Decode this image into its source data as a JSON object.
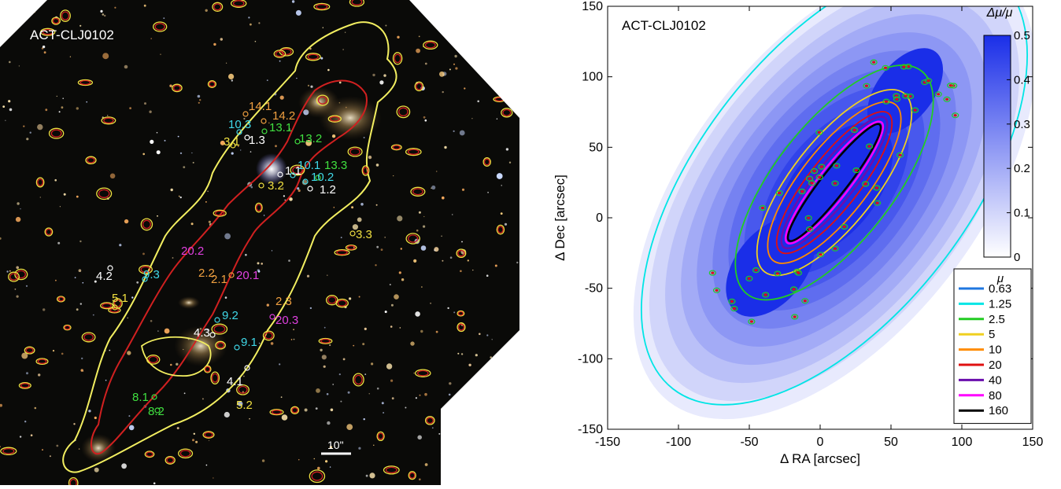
{
  "left_image": {
    "title": "ACT-CLJ0102",
    "scale_label": "10\"",
    "image_labels": [
      {
        "text": "14.1",
        "color": "#f0a040"
      },
      {
        "text": "14.2",
        "color": "#f0a040"
      },
      {
        "text": "10.3",
        "color": "#40d8e8"
      },
      {
        "text": "13.1",
        "color": "#40e040"
      },
      {
        "text": "13.2",
        "color": "#40e040"
      },
      {
        "text": "3.1",
        "color": "#f0e040"
      },
      {
        "text": "1.3",
        "color": "#ffffff"
      },
      {
        "text": "1.1",
        "color": "#ffffff"
      },
      {
        "text": "10.1",
        "color": "#40d8e8"
      },
      {
        "text": "13.3",
        "color": "#40e040"
      },
      {
        "text": "10.2",
        "color": "#40d8e8"
      },
      {
        "text": "1.2",
        "color": "#ffffff"
      },
      {
        "text": "3.2",
        "color": "#f0e040"
      },
      {
        "text": "3.3",
        "color": "#f0e040"
      },
      {
        "text": "20.2",
        "color": "#e040e0"
      },
      {
        "text": "4.2",
        "color": "#ffffff"
      },
      {
        "text": "9.3",
        "color": "#40d8e8"
      },
      {
        "text": "2.2",
        "color": "#f0a040"
      },
      {
        "text": "2.1",
        "color": "#f0a040"
      },
      {
        "text": "20.1",
        "color": "#e040e0"
      },
      {
        "text": "5.1",
        "color": "#f0e040"
      },
      {
        "text": "2.3",
        "color": "#f0a040"
      },
      {
        "text": "9.2",
        "color": "#40d8e8"
      },
      {
        "text": "20.3",
        "color": "#e040e0"
      },
      {
        "text": "4.3",
        "color": "#ffffff"
      },
      {
        "text": "9.1",
        "color": "#40d8e8"
      },
      {
        "text": "4.1",
        "color": "#ffffff"
      },
      {
        "text": "8.1",
        "color": "#40e040"
      },
      {
        "text": "8.2",
        "color": "#40e040"
      },
      {
        "text": "5.2",
        "color": "#f0e040"
      }
    ]
  },
  "chart_data": {
    "type": "heatmap",
    "title": "ACT-CLJ0102",
    "xlabel": "Δ RA [arcsec]",
    "ylabel": "Δ Dec [arcsec]",
    "xlim": [
      -150,
      150
    ],
    "ylim": [
      -150,
      150
    ],
    "xticks": [
      -150,
      -100,
      -50,
      0,
      50,
      100,
      150
    ],
    "yticks": [
      -150,
      -100,
      -50,
      0,
      50,
      100,
      150
    ],
    "colorbar": {
      "label": "Δμ/μ",
      "range": [
        0,
        0.5
      ],
      "ticks": [
        0,
        0.1,
        0.2,
        0.3,
        0.4,
        0.5
      ],
      "low_color": "#ffffff",
      "high_color": "#1a2ee8"
    },
    "uncertainty_levels": [
      0.05,
      0.1,
      0.15,
      0.2,
      0.25,
      0.3,
      0.35,
      0.4,
      0.45,
      0.5
    ],
    "legend": {
      "title": "μ",
      "position": "lower-right",
      "entries": [
        {
          "label": "0.63",
          "color": "#1f77e0"
        },
        {
          "label": "1.25",
          "color": "#00e5e5"
        },
        {
          "label": "2.5",
          "color": "#22cc22"
        },
        {
          "label": "5",
          "color": "#f0d020"
        },
        {
          "label": "10",
          "color": "#ff8c00"
        },
        {
          "label": "20",
          "color": "#e01010"
        },
        {
          "label": "40",
          "color": "#6a0dad"
        },
        {
          "label": "80",
          "color": "#ff00ff"
        },
        {
          "label": "160",
          "color": "#000000"
        }
      ]
    }
  }
}
